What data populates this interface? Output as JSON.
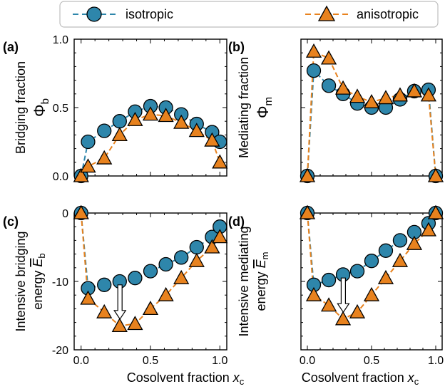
{
  "legend": {
    "items": [
      {
        "label": "isotropic",
        "color": "#2E86AB",
        "marker": "circle"
      },
      {
        "label": "anisotropic",
        "color": "#E8821E",
        "marker": "triangle"
      }
    ]
  },
  "xlabel_text": "Cosolvent fraction ",
  "xlabel_var": "x",
  "xlabel_sub": "c",
  "colors": {
    "isotropic": "#2E86AB",
    "anisotropic": "#E8821E",
    "arrow": "#ffffff"
  },
  "chart_data": [
    {
      "panel": "(a)",
      "type": "line",
      "ylabel_line1": "Bridging fraction",
      "ylabel_sym": "Φ",
      "ylabel_sub": "b",
      "xlim": [
        -0.05,
        1.05
      ],
      "ylim": [
        0,
        1.0
      ],
      "yticks": [
        0,
        0.5,
        1.0
      ],
      "ytick_labels": [
        "0.0",
        "0.5",
        "1.0"
      ],
      "xticks": [
        0,
        0.5,
        1.0
      ],
      "xtick_labels": [],
      "x": [
        0,
        0.05,
        0.167,
        0.278,
        0.389,
        0.5,
        0.611,
        0.722,
        0.833,
        0.944,
        1.0
      ],
      "series": [
        {
          "name": "isotropic",
          "values": [
            0.0,
            0.25,
            0.33,
            0.4,
            0.47,
            0.51,
            0.5,
            0.45,
            0.38,
            0.32,
            0.25
          ]
        },
        {
          "name": "anisotropic",
          "values": [
            0.0,
            0.07,
            0.13,
            0.3,
            0.41,
            0.45,
            0.44,
            0.39,
            0.33,
            0.26,
            0.1
          ]
        }
      ]
    },
    {
      "panel": "(b)",
      "type": "line",
      "ylabel_line1": "Mediating fraction",
      "ylabel_sym": "Φ",
      "ylabel_sub": "m",
      "xlim": [
        -0.05,
        1.05
      ],
      "ylim": [
        0,
        1.0
      ],
      "yticks": [
        0,
        0.5,
        1.0
      ],
      "ytick_labels": [],
      "xticks": [
        0,
        0.5,
        1.0
      ],
      "xtick_labels": [],
      "x": [
        0,
        0.05,
        0.167,
        0.278,
        0.389,
        0.5,
        0.611,
        0.722,
        0.833,
        0.944,
        1.0
      ],
      "series": [
        {
          "name": "isotropic",
          "values": [
            0.0,
            0.77,
            0.66,
            0.6,
            0.53,
            0.5,
            0.5,
            0.56,
            0.62,
            0.63,
            0.0
          ]
        },
        {
          "name": "anisotropic",
          "values": [
            0.0,
            0.91,
            0.86,
            0.64,
            0.58,
            0.54,
            0.57,
            0.59,
            0.62,
            0.59,
            0.0
          ]
        }
      ]
    },
    {
      "panel": "(c)",
      "type": "line",
      "ylabel_line1": "Intensive bridging",
      "ylabel_line2": "energy ",
      "ylabel_sym": "E",
      "ylabel_sub": "b",
      "xlim": [
        -0.05,
        1.05
      ],
      "ylim": [
        -20,
        0
      ],
      "yticks": [
        -20,
        -10,
        0
      ],
      "ytick_labels": [
        "-20",
        "-10",
        "0"
      ],
      "xticks": [
        0,
        0.5,
        1.0
      ],
      "xtick_labels": [
        "0.0",
        "0.5",
        "1.0"
      ],
      "x": [
        0,
        0.05,
        0.167,
        0.278,
        0.389,
        0.5,
        0.611,
        0.722,
        0.833,
        0.944,
        1.0
      ],
      "series": [
        {
          "name": "isotropic",
          "values": [
            0.0,
            -11.0,
            -10.5,
            -10.0,
            -9.5,
            -8.5,
            -7.5,
            -6.5,
            -5.0,
            -3.5,
            -2.0
          ]
        },
        {
          "name": "anisotropic",
          "values": [
            0.0,
            -12.5,
            -14.5,
            -16.5,
            -16.2,
            -14.0,
            -12.0,
            -9.5,
            -7.0,
            -5.0,
            -3.5
          ]
        }
      ],
      "arrow": {
        "x": 0.28,
        "from": -10.5,
        "to": -15.5
      }
    },
    {
      "panel": "(d)",
      "type": "line",
      "ylabel_line1": "Intensive mediating",
      "ylabel_line2": "energy ",
      "ylabel_sym": "E",
      "ylabel_sub": "m",
      "xlim": [
        -0.05,
        1.05
      ],
      "ylim": [
        -20,
        0
      ],
      "yticks": [
        -20,
        -10,
        0
      ],
      "ytick_labels": [],
      "xticks": [
        0,
        0.5,
        1.0
      ],
      "xtick_labels": [
        "0.0",
        "0.5",
        "1.0"
      ],
      "x": [
        0,
        0.05,
        0.167,
        0.278,
        0.389,
        0.5,
        0.611,
        0.722,
        0.833,
        0.944,
        1.0
      ],
      "series": [
        {
          "name": "isotropic",
          "values": [
            0.0,
            -10.5,
            -9.8,
            -9.0,
            -8.5,
            -7.0,
            -5.5,
            -4.0,
            -2.8,
            -1.5,
            0.0
          ]
        },
        {
          "name": "anisotropic",
          "values": [
            0.0,
            -12.0,
            -13.5,
            -15.5,
            -14.5,
            -12.0,
            -9.5,
            -7.0,
            -4.5,
            -2.5,
            0.0
          ]
        }
      ],
      "arrow": {
        "x": 0.28,
        "from": -9.5,
        "to": -14.5
      }
    }
  ]
}
